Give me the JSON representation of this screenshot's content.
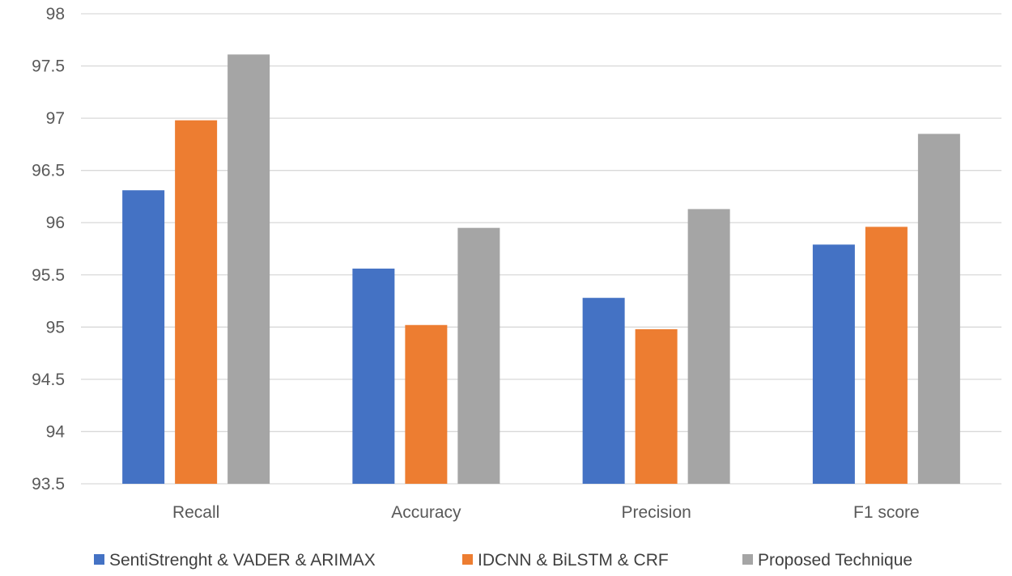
{
  "chart_data": {
    "type": "bar",
    "title": "",
    "xlabel": "",
    "ylabel": "",
    "categories": [
      "Recall",
      "Accuracy",
      "Precision",
      "F1 score"
    ],
    "ylim": [
      93.5,
      98
    ],
    "yticks": [
      93.5,
      94,
      94.5,
      95,
      95.5,
      96,
      96.5,
      97,
      97.5,
      98
    ],
    "ytick_labels": [
      "93.5",
      "94",
      "94.5",
      "95",
      "95.5",
      "96",
      "96.5",
      "97",
      "97.5",
      "98"
    ],
    "grid": true,
    "legend_position": "bottom",
    "series": [
      {
        "name": "SentiStrenght & VADER & ARIMAX",
        "color": "#4472c4",
        "values": [
          96.31,
          95.56,
          95.28,
          95.79
        ]
      },
      {
        "name": "IDCNN & BiLSTM  & CRF",
        "color": "#ed7d31",
        "values": [
          96.98,
          95.02,
          94.98,
          95.96
        ]
      },
      {
        "name": "Proposed Technique",
        "color": "#a5a5a5",
        "values": [
          97.61,
          95.95,
          96.13,
          96.85
        ]
      }
    ]
  }
}
